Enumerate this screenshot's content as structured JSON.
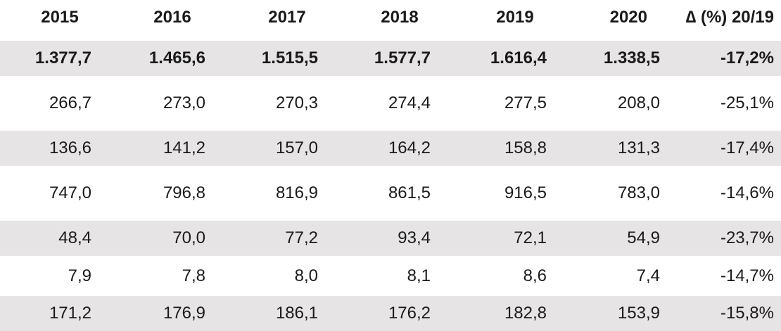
{
  "header": [
    "2015",
    "2016",
    "2017",
    "2018",
    "2019",
    "2020",
    "∆ (%) 20/19"
  ],
  "rows": [
    [
      "1.377,7",
      "1.465,6",
      "1.515,5",
      "1.577,7",
      "1.616,4",
      "1.338,5",
      "-17,2%"
    ],
    [
      "266,7",
      "273,0",
      "270,3",
      "274,4",
      "277,5",
      "208,0",
      "-25,1%"
    ],
    [
      "136,6",
      "141,2",
      "157,0",
      "164,2",
      "158,8",
      "131,3",
      "-17,4%"
    ],
    [
      "747,0",
      "796,8",
      "816,9",
      "861,5",
      "916,5",
      "783,0",
      "-14,6%"
    ],
    [
      "48,4",
      "70,0",
      "77,2",
      "93,4",
      "72,1",
      "54,9",
      "-23,7%"
    ],
    [
      "7,9",
      "7,8",
      "8,0",
      "8,1",
      "8,6",
      "7,4",
      "-14,7%"
    ],
    [
      "171,2",
      "176,9",
      "186,1",
      "176,2",
      "182,8",
      "153,9",
      "-15,8%"
    ]
  ],
  "colors": {
    "shade": "#e6e4e4",
    "text": "#1a1a1a"
  }
}
